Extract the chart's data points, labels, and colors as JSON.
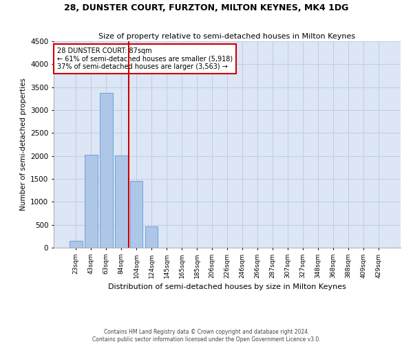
{
  "title": "28, DUNSTER COURT, FURZTON, MILTON KEYNES, MK4 1DG",
  "subtitle": "Size of property relative to semi-detached houses in Milton Keynes",
  "xlabel": "Distribution of semi-detached houses by size in Milton Keynes",
  "ylabel": "Number of semi-detached properties",
  "footnote1": "Contains HM Land Registry data © Crown copyright and database right 2024.",
  "footnote2": "Contains public sector information licensed under the Open Government Licence v3.0.",
  "annotation_title": "28 DUNSTER COURT: 87sqm",
  "annotation_line1": "← 61% of semi-detached houses are smaller (5,918)",
  "annotation_line2": "37% of semi-detached houses are larger (3,563) →",
  "categories": [
    "23sqm",
    "43sqm",
    "63sqm",
    "84sqm",
    "104sqm",
    "124sqm",
    "145sqm",
    "165sqm",
    "185sqm",
    "206sqm",
    "226sqm",
    "246sqm",
    "266sqm",
    "287sqm",
    "307sqm",
    "327sqm",
    "348sqm",
    "368sqm",
    "388sqm",
    "409sqm",
    "429sqm"
  ],
  "values": [
    150,
    2030,
    3380,
    2010,
    1450,
    460,
    0,
    0,
    0,
    0,
    0,
    0,
    0,
    0,
    0,
    0,
    0,
    0,
    0,
    0,
    0
  ],
  "bar_color": "#aec6e8",
  "bar_edge_color": "#5b9bd5",
  "vline_color": "#cc0000",
  "annotation_box_color": "#cc0000",
  "background_color": "#ffffff",
  "plot_bg_color": "#dce6f5",
  "grid_color": "#c0cce0",
  "ylim": [
    0,
    4500
  ],
  "yticks": [
    0,
    500,
    1000,
    1500,
    2000,
    2500,
    3000,
    3500,
    4000,
    4500
  ],
  "vline_x": 3.5
}
